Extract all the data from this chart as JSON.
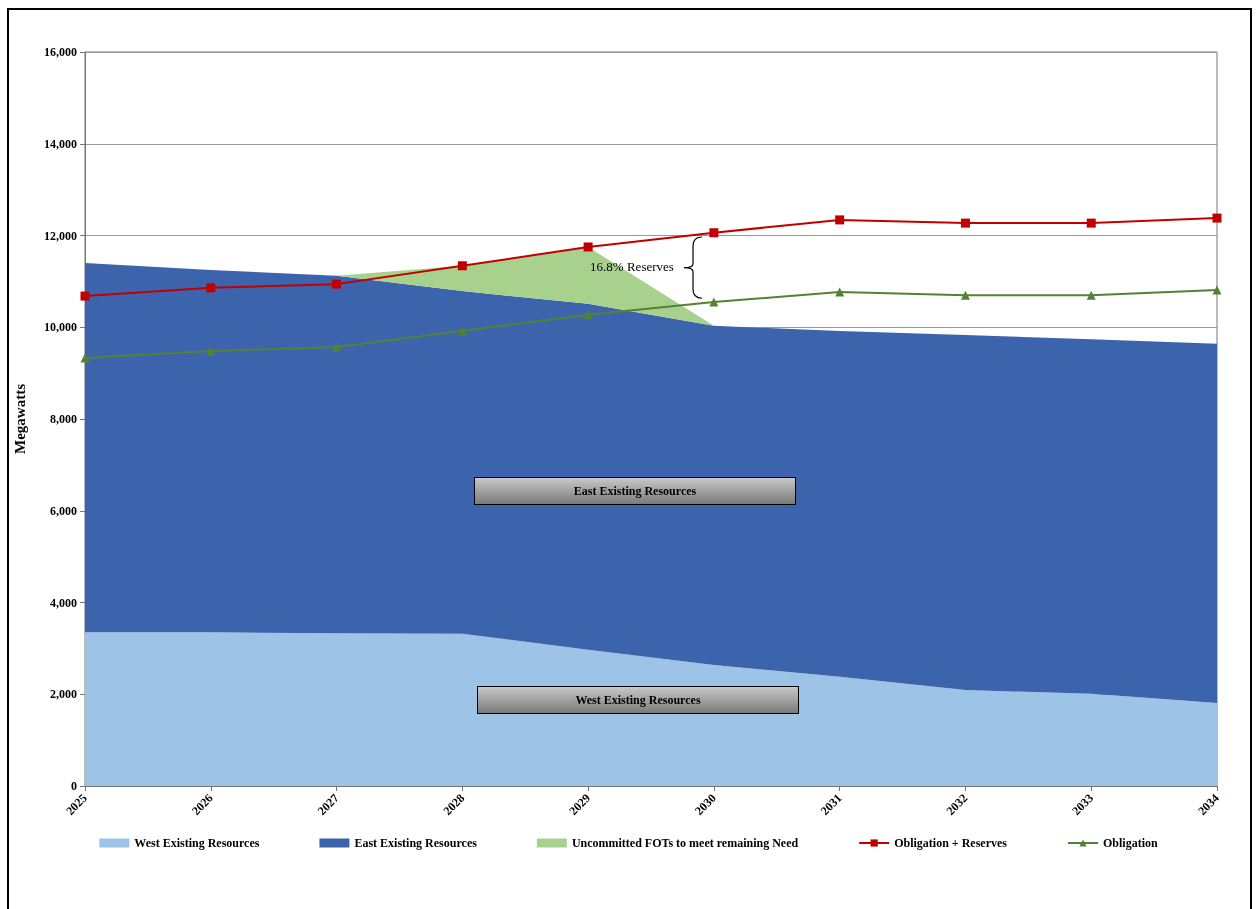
{
  "chart_data": {
    "type": "area",
    "stacked": true,
    "ylabel": "Megawatts",
    "categories": [
      "2025",
      "2026",
      "2027",
      "2028",
      "2029",
      "2030",
      "2031",
      "2032",
      "2033",
      "2034"
    ],
    "series": [
      {
        "name": "West Existing Resources",
        "color": "#9dc3e6",
        "values": [
          3350,
          3350,
          3330,
          3320,
          2970,
          2640,
          2380,
          2090,
          2010,
          1810
        ]
      },
      {
        "name": "East Existing Resources",
        "color": "#3c64ac",
        "values": [
          8050,
          7900,
          7790,
          7470,
          7540,
          7390,
          7540,
          7740,
          7730,
          7830
        ]
      },
      {
        "name": "Uncommitted FOTs to meet remaining Need",
        "color": "#a9d18e",
        "values": [
          0,
          0,
          0,
          550,
          1240,
          0,
          0,
          0,
          0,
          0
        ]
      },
      {
        "name": "Obligation + Reserves",
        "type": "line",
        "marker": "square",
        "color": "#c00000",
        "values": [
          10680,
          10860,
          10940,
          11340,
          11750,
          12060,
          12340,
          12270,
          12270,
          12380
        ]
      },
      {
        "name": "Obligation",
        "type": "line",
        "marker": "triangle",
        "color": "#548235",
        "values": [
          9330,
          9480,
          9570,
          9920,
          10270,
          10550,
          10770,
          10700,
          10700,
          10810
        ]
      }
    ],
    "ylim": [
      0,
      16000
    ],
    "yticks": [
      0,
      {
        "value": 2000,
        "label": "2,000"
      },
      {
        "value": 4000,
        "label": "4,000"
      },
      {
        "value": 6000,
        "label": "6,000"
      },
      {
        "value": 8000,
        "label": "8,000"
      },
      {
        "value": 10000,
        "label": "10,000"
      },
      {
        "value": 12000,
        "label": "12,000"
      },
      {
        "value": 14000,
        "label": "14,000"
      },
      {
        "value": 16000,
        "label": "16,000"
      }
    ],
    "grid": "y",
    "legend": "bottom",
    "annotations": [
      "16.8% Reserves",
      "East Existing Resources",
      "West Existing Resources"
    ]
  }
}
